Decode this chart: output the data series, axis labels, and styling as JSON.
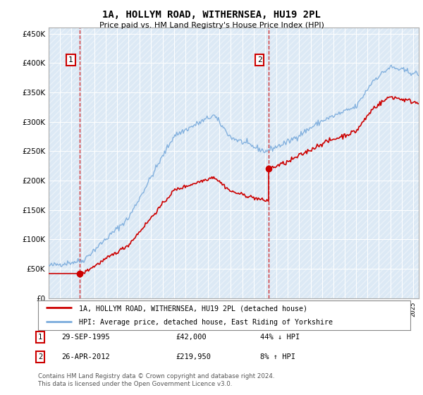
{
  "title": "1A, HOLLYM ROAD, WITHERNSEA, HU19 2PL",
  "subtitle": "Price paid vs. HM Land Registry's House Price Index (HPI)",
  "ytick_values": [
    0,
    50000,
    100000,
    150000,
    200000,
    250000,
    300000,
    350000,
    400000,
    450000
  ],
  "ylim": [
    0,
    460000
  ],
  "xlim_start": 1993.0,
  "xlim_end": 2025.5,
  "hpi_color": "#7aabdc",
  "price_color": "#cc0000",
  "point1_x": 1995.75,
  "point1_y": 42000,
  "point2_x": 2012.33,
  "point2_y": 219950,
  "vline1_x": 1995.75,
  "vline2_x": 2012.33,
  "legend_label1": "1A, HOLLYM ROAD, WITHERNSEA, HU19 2PL (detached house)",
  "legend_label2": "HPI: Average price, detached house, East Riding of Yorkshire",
  "table_row1": [
    "1",
    "29-SEP-1995",
    "£42,000",
    "44% ↓ HPI"
  ],
  "table_row2": [
    "2",
    "26-APR-2012",
    "£219,950",
    "8% ↑ HPI"
  ],
  "footer": "Contains HM Land Registry data © Crown copyright and database right 2024.\nThis data is licensed under the Open Government Licence v3.0.",
  "background_color": "#ffffff",
  "plot_bg_color": "#dce9f5"
}
